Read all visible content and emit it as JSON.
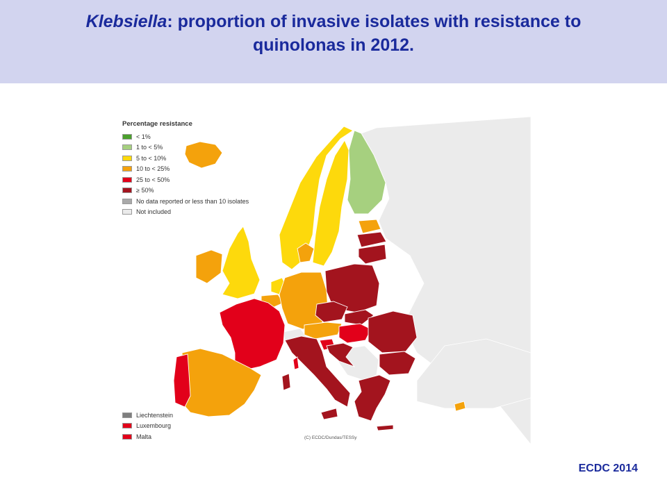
{
  "title": {
    "organism": "Klebsiella",
    "rest_line1": ": proportion of invasive isolates with resistance to",
    "line2": "quinolonas in 2012",
    "period": "."
  },
  "legend": {
    "title": "Percentage resistance",
    "items": [
      {
        "label": "< 1%",
        "color": "#4aa02c"
      },
      {
        "label": "1 to < 5%",
        "color": "#a6d07f"
      },
      {
        "label": "5 to < 10%",
        "color": "#fdd90c"
      },
      {
        "label": "10 to < 25%",
        "color": "#f4a20c"
      },
      {
        "label": "25 to < 50%",
        "color": "#e2001a"
      },
      {
        "label": "≥ 50%",
        "color": "#a3141e"
      },
      {
        "label": "No data reported or less than 10 isolates",
        "color": "#a9a9a9"
      },
      {
        "label": "Not included",
        "color": "#ebebeb"
      }
    ]
  },
  "small_countries": [
    {
      "label": "Liechtenstein",
      "color": "#7f7f7f"
    },
    {
      "label": "Luxembourg",
      "color": "#e2001a"
    },
    {
      "label": "Malta",
      "color": "#e2001a"
    }
  ],
  "copyright": "(C) ECDC/Dundas/TESSy",
  "source": "ECDC 2014",
  "colors": {
    "header_bg": "#d2d4ef",
    "title_text": "#1a2a9c",
    "not_included": "#ebebeb",
    "border": "#ffffff"
  },
  "regions": [
    {
      "name": "Iceland",
      "category": "10 to < 25%"
    },
    {
      "name": "Norway",
      "category": "5 to < 10%"
    },
    {
      "name": "Sweden",
      "category": "5 to < 10%"
    },
    {
      "name": "Finland",
      "category": "1 to < 5%"
    },
    {
      "name": "Estonia",
      "category": "10 to < 25%"
    },
    {
      "name": "Latvia",
      "category": "≥ 50%"
    },
    {
      "name": "Lithuania",
      "category": "≥ 50%"
    },
    {
      "name": "Ireland",
      "category": "10 to < 25%"
    },
    {
      "name": "United Kingdom",
      "category": "5 to < 10%"
    },
    {
      "name": "Denmark",
      "category": "10 to < 25%"
    },
    {
      "name": "Netherlands",
      "category": "5 to < 10%"
    },
    {
      "name": "Belgium",
      "category": "10 to < 25%"
    },
    {
      "name": "Germany",
      "category": "10 to < 25%"
    },
    {
      "name": "Poland",
      "category": "≥ 50%"
    },
    {
      "name": "Czech Republic",
      "category": "≥ 50%"
    },
    {
      "name": "Slovakia",
      "category": "≥ 50%"
    },
    {
      "name": "Austria",
      "category": "10 to < 25%"
    },
    {
      "name": "Hungary",
      "category": "25 to < 50%"
    },
    {
      "name": "Slovenia",
      "category": "25 to < 50%"
    },
    {
      "name": "Croatia",
      "category": "≥ 50%"
    },
    {
      "name": "Romania",
      "category": "≥ 50%"
    },
    {
      "name": "Bulgaria",
      "category": "≥ 50%"
    },
    {
      "name": "Greece",
      "category": "≥ 50%"
    },
    {
      "name": "Cyprus",
      "category": "10 to < 25%"
    },
    {
      "name": "France",
      "category": "25 to < 50%"
    },
    {
      "name": "Spain",
      "category": "10 to < 25%"
    },
    {
      "name": "Portugal",
      "category": "25 to < 50%"
    },
    {
      "name": "Italy",
      "category": "≥ 50%"
    },
    {
      "name": "Switzerland",
      "category": "Not included"
    }
  ]
}
